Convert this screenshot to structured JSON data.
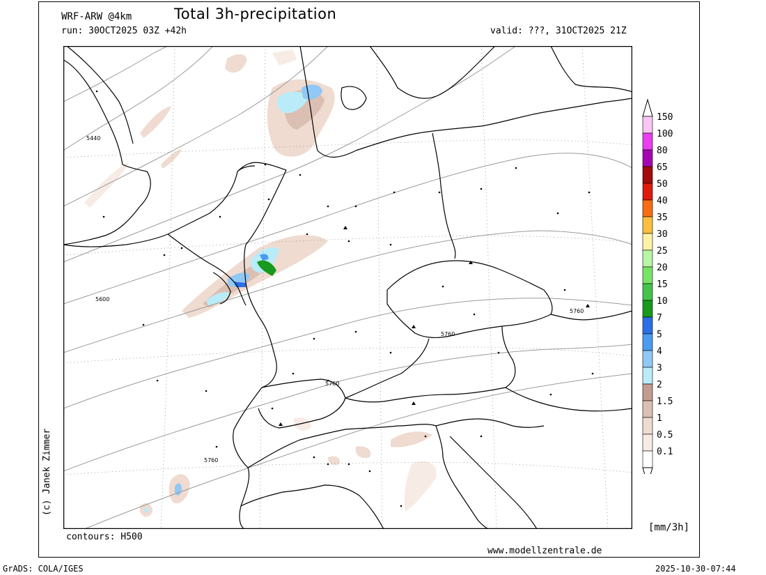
{
  "header": {
    "model": "WRF-ARW @4km",
    "title": "Total 3h-precipitation",
    "run": "run: 30OCT2025 03Z +42h",
    "valid": "valid: ???, 31OCT2025 21Z"
  },
  "footer": {
    "contours": "contours: H500",
    "website": "www.modellzentrale.de",
    "copyright": "(c) Janek Zimmer",
    "grads": "GrADS: COLA/IGES",
    "timestamp": "2025-10-30-07:44"
  },
  "colorbar": {
    "units": "[mm/3h]",
    "levels": [
      {
        "label": "150",
        "color": "#f7c6f2"
      },
      {
        "label": "100",
        "color": "#ea3ef0"
      },
      {
        "label": "80",
        "color": "#a605b4"
      },
      {
        "label": "65",
        "color": "#a60a0a"
      },
      {
        "label": "50",
        "color": "#e21a0b"
      },
      {
        "label": "40",
        "color": "#f96c12"
      },
      {
        "label": "35",
        "color": "#fbbe3f"
      },
      {
        "label": "30",
        "color": "#fef2a6"
      },
      {
        "label": "25",
        "color": "#b8f5a6"
      },
      {
        "label": "20",
        "color": "#78e466"
      },
      {
        "label": "15",
        "color": "#44c44a"
      },
      {
        "label": "10",
        "color": "#179a1b"
      },
      {
        "label": "7",
        "color": "#2a6fe8"
      },
      {
        "label": "5",
        "color": "#4a9cf2"
      },
      {
        "label": "4",
        "color": "#90c8f6"
      },
      {
        "label": "3",
        "color": "#b9ecf8"
      },
      {
        "label": "2",
        "color": "#c29c90"
      },
      {
        "label": "1.5",
        "color": "#dcbfb3"
      },
      {
        "label": "1",
        "color": "#efdbd0"
      },
      {
        "label": "0.5",
        "color": "#f7ece5"
      },
      {
        "label": "0.1",
        "color": "#ffffff"
      }
    ]
  },
  "contour_labels": [
    "5440",
    "5600",
    "5760",
    "5760",
    "5760",
    "5760"
  ],
  "colors": {
    "contour": "#9a9a9a",
    "border": "#000000",
    "grid": "#888888"
  }
}
